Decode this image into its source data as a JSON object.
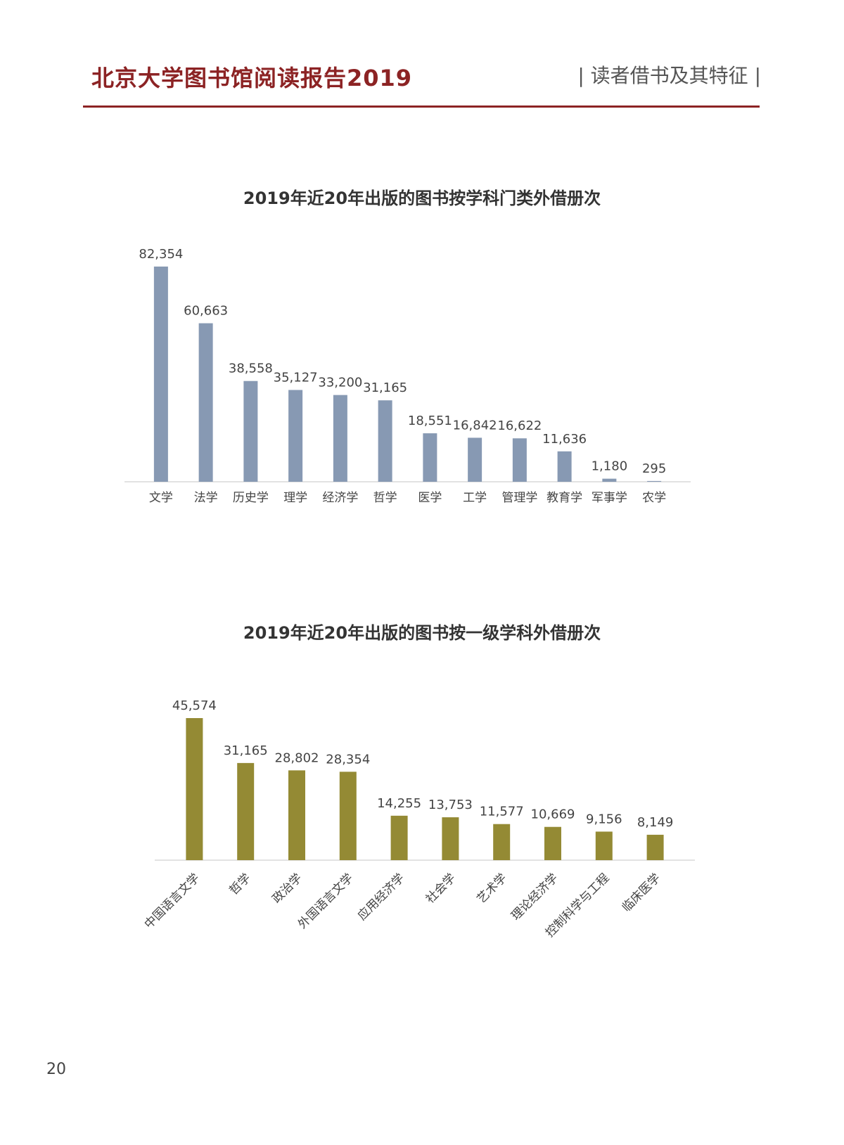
{
  "header": {
    "title": "北京大学图书馆阅读报告2019",
    "section": "| 读者借书及其特征 |",
    "accent_color": "#8c2324"
  },
  "chart_data": [
    {
      "type": "bar",
      "title": "2019年近20年出版的图书按学科门类外借册次",
      "categories": [
        "文学",
        "法学",
        "历史学",
        "理学",
        "经济学",
        "哲学",
        "医学",
        "工学",
        "管理学",
        "教育学",
        "军事学",
        "农学"
      ],
      "values": [
        82354,
        60663,
        38558,
        35127,
        33200,
        31165,
        18551,
        16842,
        16622,
        11636,
        1180,
        295
      ],
      "value_labels": [
        "82,354",
        "60,663",
        "38,558",
        "35,127",
        "33,200",
        "31,165",
        "18,551",
        "16,842",
        "16,622",
        "11,636",
        "1,180",
        "295"
      ],
      "bar_color": "#8799b3",
      "ylim": [
        0,
        82354
      ],
      "grid": false,
      "xlabel": "",
      "ylabel": ""
    },
    {
      "type": "bar",
      "title": "2019年近20年出版的图书按一级学科外借册次",
      "categories": [
        "中国语言文学",
        "哲学",
        "政治学",
        "外国语言文学",
        "应用经济学",
        "社会学",
        "艺术学",
        "理论经济学",
        "控制科学与工程",
        "临床医学"
      ],
      "values": [
        45574,
        31165,
        28802,
        28354,
        14255,
        13753,
        11577,
        10669,
        9156,
        8149
      ],
      "value_labels": [
        "45,574",
        "31,165",
        "28,802",
        "28,354",
        "14,255",
        "13,753",
        "11,577",
        "10,669",
        "9,156",
        "8,149"
      ],
      "bar_color": "#948a34",
      "ylim": [
        0,
        45574
      ],
      "grid": false,
      "xlabel": "",
      "ylabel": ""
    }
  ],
  "footer": {
    "page_number": "20"
  }
}
